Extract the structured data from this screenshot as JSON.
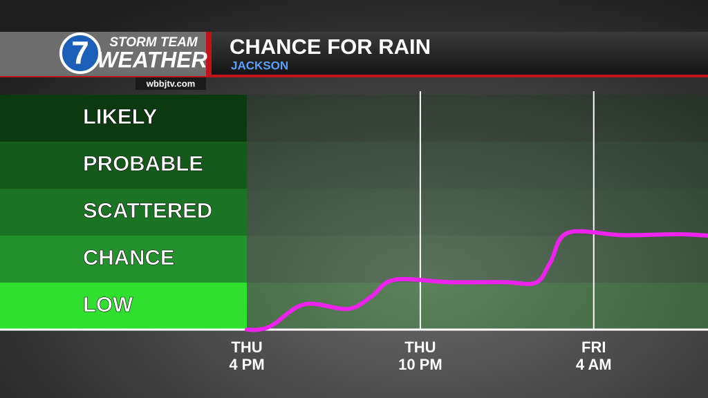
{
  "header": {
    "logo": "7",
    "brand_top": "STORM TEAM",
    "brand_bottom": "WEATHER",
    "website": "wbbjtv.com"
  },
  "chart_data": {
    "type": "line",
    "title": "CHANCE FOR RAIN",
    "subtitle": "JACKSON",
    "x": [
      0,
      0.4,
      0.9,
      2,
      3.5,
      4.3,
      5.1,
      7,
      8.9,
      10,
      10.5,
      11.1,
      13,
      14.9,
      15.95
    ],
    "series": [
      {
        "name": "Chance for rain",
        "color": "#ee22ee",
        "values": [
          0,
          0,
          0.1,
          0.54,
          0.44,
          0.7,
          1.06,
          1.01,
          1.01,
          1.0,
          1.43,
          2.06,
          2.01,
          2.03,
          2.0
        ]
      }
    ],
    "xlim": [
      0,
      16
    ],
    "xticks": [
      {
        "value": 0,
        "label": "THU 4 PM"
      },
      {
        "value": 6,
        "label": "THU 10 PM"
      },
      {
        "value": 12,
        "label": "FRI 4 AM"
      }
    ],
    "ylim": [
      0,
      5
    ],
    "yticks": [
      {
        "value": 0.5,
        "label": "LOW"
      },
      {
        "value": 1.5,
        "label": "CHANCE"
      },
      {
        "value": 2.5,
        "label": "SCATTERED"
      },
      {
        "value": 3.5,
        "label": "PROBABLE"
      },
      {
        "value": 4.5,
        "label": "LIKELY"
      }
    ],
    "band_colors": [
      "#2fe02f",
      "#23922c",
      "#1b7424",
      "#145a1a",
      "#0b3a10"
    ],
    "grid": true
  }
}
